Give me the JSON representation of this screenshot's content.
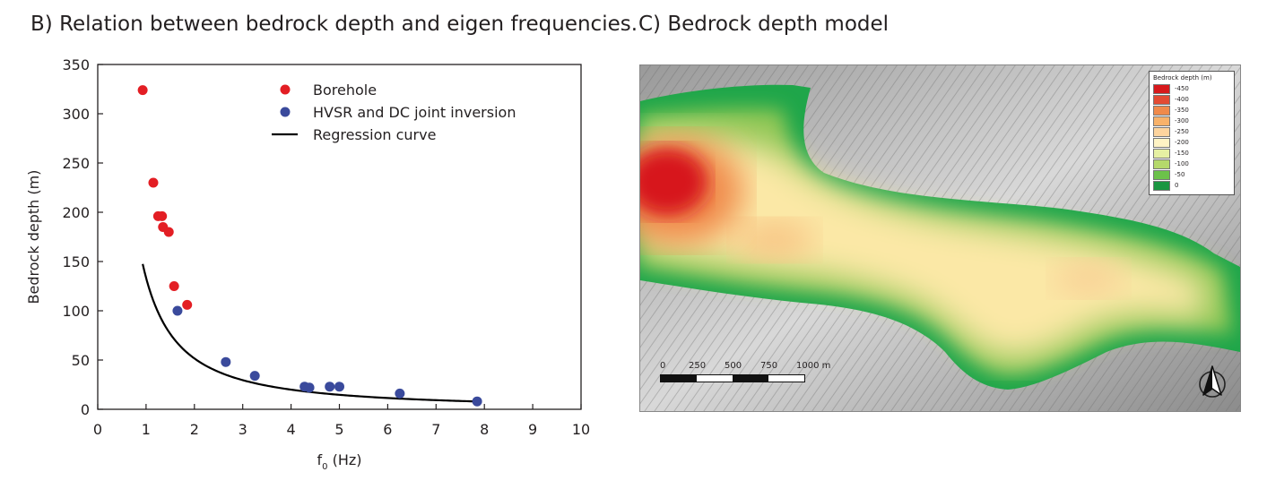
{
  "panelB": {
    "title": "B) Relation between bedrock depth and eigen frequencies."
  },
  "panelC": {
    "title": "C) Bedrock depth model",
    "legend": {
      "title": "Bedrock depth (m)",
      "entries": [
        {
          "label": "-450",
          "color": "#d7191c"
        },
        {
          "label": "-400",
          "color": "#e34a33"
        },
        {
          "label": "-350",
          "color": "#f08a4b"
        },
        {
          "label": "-300",
          "color": "#f8b26a"
        },
        {
          "label": "-250",
          "color": "#fdd49e"
        },
        {
          "label": "-200",
          "color": "#fff3c4"
        },
        {
          "label": "-150",
          "color": "#e6f0a3"
        },
        {
          "label": "-100",
          "color": "#b5d96b"
        },
        {
          "label": "-50",
          "color": "#6cc24a"
        },
        {
          "label": "0",
          "color": "#1a9641"
        }
      ]
    },
    "scalebar": {
      "labels": [
        "0",
        "250",
        "500",
        "750",
        "1000 m"
      ]
    }
  },
  "chart_data": {
    "type": "scatter",
    "xlabel": "f",
    "xlabel_sub": "0",
    "xlabel_unit": " (Hz)",
    "ylabel": "Bedrock depth (m)",
    "xlim": [
      0,
      10
    ],
    "ylim": [
      0,
      350
    ],
    "xticks": [
      0,
      1,
      2,
      3,
      4,
      5,
      6,
      7,
      8,
      9,
      10
    ],
    "yticks": [
      0,
      50,
      100,
      150,
      200,
      250,
      300,
      350
    ],
    "grid": false,
    "legend_position": "top-right",
    "series": [
      {
        "name": "Borehole",
        "color": "#e31e24",
        "points": [
          [
            0.93,
            324
          ],
          [
            1.15,
            230
          ],
          [
            1.25,
            196
          ],
          [
            1.33,
            196
          ],
          [
            1.35,
            185
          ],
          [
            1.47,
            180
          ],
          [
            1.58,
            125
          ],
          [
            1.85,
            106
          ]
        ]
      },
      {
        "name": "HVSR and DC joint inversion",
        "color": "#3a4a9c",
        "points": [
          [
            1.65,
            100
          ],
          [
            2.65,
            48
          ],
          [
            3.25,
            34
          ],
          [
            4.28,
            23
          ],
          [
            4.38,
            22
          ],
          [
            4.8,
            23
          ],
          [
            5.0,
            23
          ],
          [
            6.25,
            16
          ],
          [
            7.85,
            8
          ]
        ]
      }
    ],
    "regression": {
      "name": "Regression curve",
      "color": "#000000",
      "model": "depth = a * f0^b",
      "a": 133.5,
      "b": -1.371,
      "x_range": [
        0.93,
        7.85
      ]
    }
  }
}
